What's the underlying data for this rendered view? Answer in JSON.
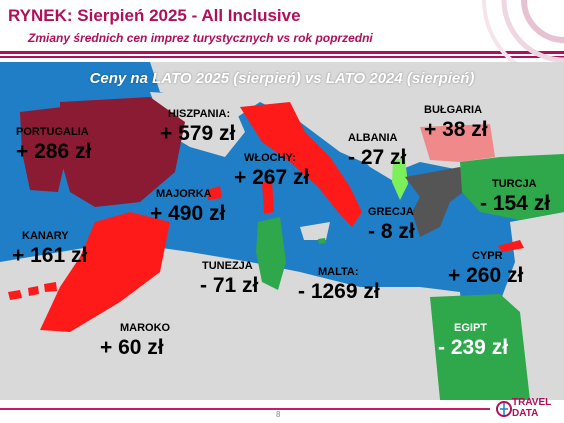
{
  "header": {
    "title": "RYNEK: Sierpień 2025 - All Inclusive",
    "subtitle": "Zmiany średnich cen imprez turystycznych vs rok poprzedni"
  },
  "chart_data": {
    "type": "map",
    "title": "Ceny na LATO 2025 (sierpień) vs  LATO 2024 (sierpień)",
    "unit": "zł",
    "regions": [
      {
        "name": "PORTUGALIA",
        "display": "+ 286 zł",
        "value": 286,
        "color": "#8b1a33"
      },
      {
        "name": "HISZPANIA:",
        "display": "+ 579 zł",
        "value": 579,
        "color": "#8b1a33"
      },
      {
        "name": "WŁOCHY:",
        "display": "+ 267 zł",
        "value": 267,
        "color": "#ff1a1a"
      },
      {
        "name": "ALBANIA",
        "display": "- 27 zł",
        "value": -27,
        "color": "#7cf05a"
      },
      {
        "name": "BUŁGARIA",
        "display": "+ 38 zł",
        "value": 38,
        "color": "#f08a8a"
      },
      {
        "name": "TURCJA",
        "display": "- 154 zł",
        "value": -154,
        "color": "#2ea84a"
      },
      {
        "name": "MAJORKA",
        "display": "+ 490 zł",
        "value": 490,
        "color": "#ff1a1a"
      },
      {
        "name": "GRECJA",
        "display": "- 8 zł",
        "value": -8,
        "color": "#555555"
      },
      {
        "name": "KANARY",
        "display": "+ 161 zł",
        "value": 161,
        "color": "#ff1a1a"
      },
      {
        "name": "TUNEZJA",
        "display": "- 71 zł",
        "value": -71,
        "color": "#2ea84a"
      },
      {
        "name": "MALTA:",
        "display": "- 1269 zł",
        "value": -1269,
        "color": "#2ea84a"
      },
      {
        "name": "CYPR",
        "display": "+ 260 zł",
        "value": 260,
        "color": "#ff1a1a"
      },
      {
        "name": "MAROKO",
        "display": "+ 60 zł",
        "value": 60,
        "color": "#ff1a1a"
      },
      {
        "name": "EGIPT",
        "display": "- 239 zł",
        "value": -239,
        "color": "#2ea84a"
      }
    ]
  },
  "colors": {
    "sea": "#1f7ec6",
    "land": "#d9d9d9",
    "accent": "#b0105a",
    "increase_strong": "#8b1a33",
    "increase": "#ff1a1a",
    "increase_small": "#f08a8a",
    "decrease": "#2ea84a",
    "decrease_small": "#7cf05a",
    "neutral": "#555555"
  },
  "footer": {
    "page_number": "8",
    "logo_line1": "TRAVEL",
    "logo_line2": "DATA"
  }
}
